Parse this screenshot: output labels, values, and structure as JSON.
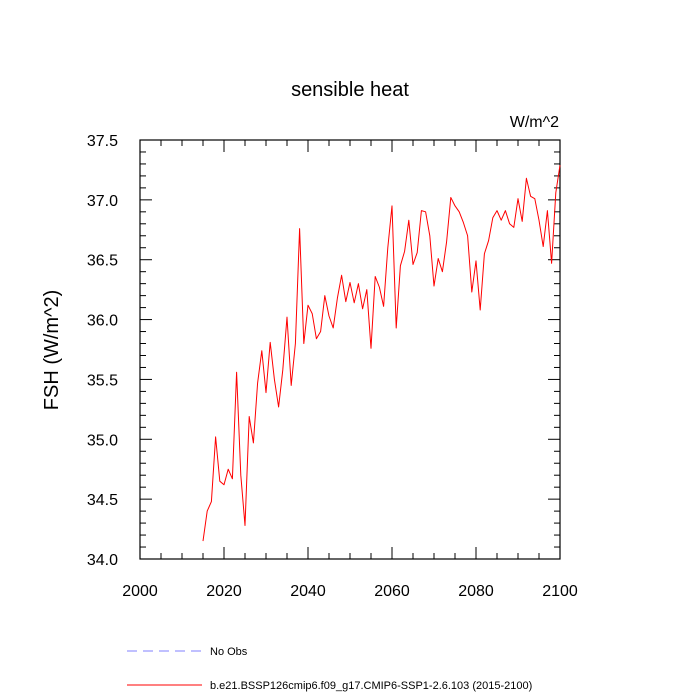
{
  "chart_data": {
    "type": "line",
    "title": "sensible heat",
    "units_label": "W/m^2",
    "ylabel": "FSH  (W/m^2)",
    "xlabel": "",
    "xlim": [
      2000,
      2100
    ],
    "ylim": [
      34.0,
      37.5
    ],
    "x_ticks": [
      2000,
      2020,
      2040,
      2060,
      2080,
      2100
    ],
    "x_tick_labels": [
      "2000",
      "2020",
      "2040",
      "2060",
      "2080",
      "2100"
    ],
    "y_ticks": [
      34.0,
      34.5,
      35.0,
      35.5,
      36.0,
      36.5,
      37.0,
      37.5
    ],
    "y_tick_labels": [
      "34.0",
      "34.5",
      "35.0",
      "35.5",
      "36.0",
      "36.5",
      "37.0",
      "37.5"
    ],
    "grid": false,
    "legend_placement": "bottom",
    "legend": [
      {
        "name": "No Obs",
        "color": "#8080ff",
        "style": "dashed"
      },
      {
        "name": "b.e21.BSSP126cmip6.f09_g17.CMIP6-SSP1-2.6.103 (2015-2100)",
        "color": "#ff0000",
        "style": "solid"
      }
    ],
    "series": [
      {
        "name": "b.e21.BSSP126cmip6.f09_g17.CMIP6-SSP1-2.6.103 (2015-2100)",
        "color": "#ff0000",
        "x": [
          2015,
          2016,
          2017,
          2018,
          2019,
          2020,
          2021,
          2022,
          2023,
          2024,
          2025,
          2026,
          2027,
          2028,
          2029,
          2030,
          2031,
          2032,
          2033,
          2034,
          2035,
          2036,
          2037,
          2038,
          2039,
          2040,
          2041,
          2042,
          2043,
          2044,
          2045,
          2046,
          2047,
          2048,
          2049,
          2050,
          2051,
          2052,
          2053,
          2054,
          2055,
          2056,
          2057,
          2058,
          2059,
          2060,
          2061,
          2062,
          2063,
          2064,
          2065,
          2066,
          2067,
          2068,
          2069,
          2070,
          2071,
          2072,
          2073,
          2074,
          2075,
          2076,
          2077,
          2078,
          2079,
          2080,
          2081,
          2082,
          2083,
          2084,
          2085,
          2086,
          2087,
          2088,
          2089,
          2090,
          2091,
          2092,
          2093,
          2094,
          2095,
          2096,
          2097,
          2098,
          2099,
          2100
        ],
        "values": [
          34.15,
          34.4,
          34.48,
          35.02,
          34.65,
          34.62,
          34.75,
          34.67,
          35.56,
          34.7,
          34.28,
          35.19,
          34.97,
          35.47,
          35.74,
          35.39,
          35.81,
          35.5,
          35.27,
          35.58,
          36.02,
          35.45,
          35.8,
          36.76,
          35.8,
          36.12,
          36.05,
          35.84,
          35.9,
          36.2,
          36.03,
          35.93,
          36.18,
          36.37,
          36.15,
          36.31,
          36.14,
          36.3,
          36.09,
          36.25,
          35.76,
          36.36,
          36.27,
          36.11,
          36.6,
          36.95,
          35.93,
          36.45,
          36.57,
          36.83,
          36.46,
          36.56,
          36.91,
          36.9,
          36.7,
          36.28,
          36.51,
          36.4,
          36.65,
          37.02,
          36.95,
          36.9,
          36.81,
          36.7,
          36.23,
          36.49,
          36.08,
          36.55,
          36.66,
          36.85,
          36.91,
          36.83,
          36.91,
          36.8,
          36.77,
          37.01,
          36.82,
          37.18,
          37.03,
          37.01,
          36.83,
          36.61,
          36.91,
          36.47,
          37.06,
          37.29
        ]
      }
    ]
  }
}
